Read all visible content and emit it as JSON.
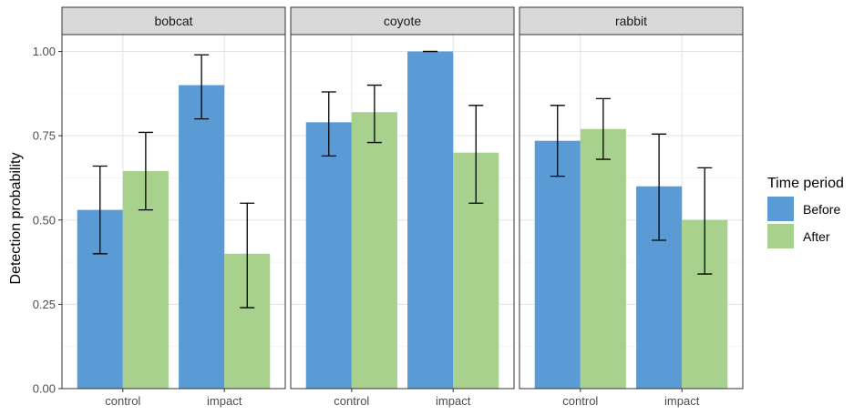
{
  "chart_data": {
    "type": "bar",
    "ylabel": "Detection probability",
    "xlabel": "",
    "ylim": [
      0,
      1.05
    ],
    "yticks": [
      "0.00",
      "0.25",
      "0.50",
      "0.75",
      "1.00"
    ],
    "categories": [
      "control",
      "impact"
    ],
    "grid": true,
    "legend": {
      "title": "Time period",
      "placement": "right",
      "entries": [
        {
          "name": "Before",
          "color": "#5b9bd5"
        },
        {
          "name": "After",
          "color": "#a9d18e"
        }
      ]
    },
    "panels": [
      {
        "name": "bobcat",
        "series": [
          {
            "name": "Before",
            "values": [
              0.53,
              0.9
            ],
            "err_low": [
              0.4,
              0.8
            ],
            "err_high": [
              0.66,
              0.99
            ]
          },
          {
            "name": "After",
            "values": [
              0.645,
              0.4
            ],
            "err_low": [
              0.53,
              0.24
            ],
            "err_high": [
              0.76,
              0.55
            ]
          }
        ]
      },
      {
        "name": "coyote",
        "series": [
          {
            "name": "Before",
            "values": [
              0.79,
              1.0
            ],
            "err_low": [
              0.69,
              1.0
            ],
            "err_high": [
              0.88,
              1.0
            ]
          },
          {
            "name": "After",
            "values": [
              0.82,
              0.7
            ],
            "err_low": [
              0.73,
              0.55
            ],
            "err_high": [
              0.9,
              0.84
            ]
          }
        ]
      },
      {
        "name": "rabbit",
        "series": [
          {
            "name": "Before",
            "values": [
              0.735,
              0.6
            ],
            "err_low": [
              0.63,
              0.44
            ],
            "err_high": [
              0.84,
              0.755
            ]
          },
          {
            "name": "After",
            "values": [
              0.77,
              0.5
            ],
            "err_low": [
              0.68,
              0.34
            ],
            "err_high": [
              0.86,
              0.655
            ]
          }
        ]
      }
    ]
  }
}
